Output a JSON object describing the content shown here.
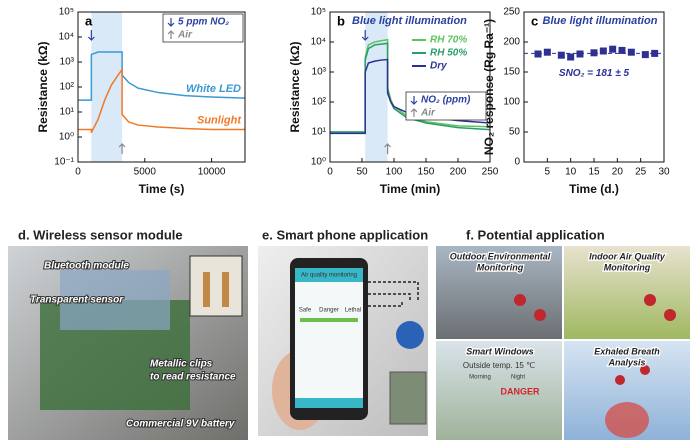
{
  "chart_data": [
    {
      "type": "line",
      "panel": "a",
      "xlabel": "Time (s)",
      "ylabel": "Resistance (kΩ)",
      "xlim": [
        0,
        12500
      ],
      "xticks": [
        0,
        5000,
        10000
      ],
      "log_y": true,
      "ylim": [
        0.1,
        100000
      ],
      "yticks": [
        {
          "value": 0.1,
          "label": "10⁻¹"
        },
        {
          "value": 1,
          "label": "10⁰"
        },
        {
          "value": 10,
          "label": "10¹"
        },
        {
          "value": 100,
          "label": "10²"
        },
        {
          "value": 1000,
          "label": "10³"
        },
        {
          "value": 10000,
          "label": "10⁴"
        },
        {
          "value": 100000,
          "label": "10⁵"
        }
      ],
      "shade": [
        1000,
        3300
      ],
      "legend": "inline",
      "annotations": [
        "5 ppm NO₂",
        "Air"
      ],
      "x": [
        0,
        1000,
        1000,
        1500,
        2000,
        2500,
        3000,
        3300,
        3300,
        3800,
        4500,
        6000,
        8000,
        10000,
        12500
      ],
      "series": [
        {
          "name": "White LED",
          "color": "#3a9ad3",
          "values": [
            30,
            30,
            2000,
            2500,
            2500,
            2500,
            2500,
            2500,
            300,
            150,
            90,
            60,
            45,
            40,
            36
          ]
        },
        {
          "name": "Sunlight",
          "color": "#f07a28",
          "values": [
            2,
            2,
            1.5,
            5,
            30,
            120,
            300,
            500,
            8,
            4,
            3,
            2.5,
            2.2,
            2,
            2
          ]
        }
      ]
    },
    {
      "type": "line",
      "panel": "b",
      "title": "Blue light illumination",
      "xlabel": "Time (min)",
      "ylabel": "Resistance (kΩ)",
      "xlim": [
        0,
        250
      ],
      "xticks": [
        0,
        50,
        100,
        150,
        200,
        250
      ],
      "log_y": true,
      "ylim": [
        1,
        100000
      ],
      "yticks": [
        {
          "value": 1,
          "label": "10⁰"
        },
        {
          "value": 10,
          "label": "10¹"
        },
        {
          "value": 100,
          "label": "10²"
        },
        {
          "value": 1000,
          "label": "10³"
        },
        {
          "value": 10000,
          "label": "10⁴"
        },
        {
          "value": 100000,
          "label": "10⁵"
        }
      ],
      "shade": [
        55,
        90
      ],
      "legend": "center right",
      "annotations": [
        "NO₂ (ppm)",
        "Air"
      ],
      "x": [
        0,
        55,
        55,
        60,
        70,
        80,
        90,
        90,
        95,
        100,
        120,
        150,
        200,
        250
      ],
      "series": [
        {
          "name": "RH 70%",
          "color": "#5cc45c",
          "values": [
            10,
            10,
            3000,
            8000,
            10000,
            11000,
            12000,
            300,
            120,
            70,
            35,
            22,
            16,
            15
          ]
        },
        {
          "name": "RH 50%",
          "color": "#2a9d6a",
          "values": [
            10,
            10,
            2500,
            6000,
            8000,
            8500,
            9000,
            250,
            100,
            60,
            30,
            20,
            14,
            12
          ]
        },
        {
          "name": "Dry",
          "color": "#2e3192",
          "values": [
            9,
            9,
            1000,
            2000,
            2300,
            2500,
            2600,
            200,
            100,
            70,
            45,
            32,
            24,
            20
          ]
        }
      ]
    },
    {
      "type": "scatter",
      "panel": "c",
      "title": "Blue light illumination",
      "xlabel": "Time (d.)",
      "ylabel": "NO₂ response (Rg Ra⁻¹)",
      "xlim": [
        0,
        30
      ],
      "xticks": [
        5,
        10,
        15,
        20,
        25,
        30
      ],
      "ylim": [
        0,
        250
      ],
      "yticks": [
        0,
        50,
        100,
        150,
        200,
        250
      ],
      "color": "#2e3192",
      "reference_line": 181,
      "annotations": [
        "SNO₂ = 181 ± 5"
      ],
      "x": [
        3,
        5,
        8,
        10,
        12,
        15,
        17,
        19,
        21,
        23,
        26,
        28
      ],
      "values": [
        180,
        183,
        178,
        175,
        180,
        182,
        185,
        188,
        186,
        183,
        179,
        181
      ]
    }
  ],
  "panels": [
    {
      "title": "d. Wireless sensor module",
      "labels": [
        "Bluetooth module",
        "Transparent sensor",
        "Metallic clips",
        "to read resistance",
        "Commercial 9V battery"
      ]
    },
    {
      "title": "e. Smart phone application",
      "labels": [
        "Air quality monitoring",
        "Safe",
        "Danger",
        "Lethal"
      ]
    },
    {
      "title": "f. Potential application",
      "labels": [
        "Outdoor Environmental",
        "Monitoring",
        "Indoor Air Quality",
        "Monitoring",
        "Smart Windows",
        "Exhaled Breath",
        "Analysis",
        "Outside temp. 15 ℃",
        "Morning",
        "Night",
        "DANGER"
      ]
    }
  ]
}
